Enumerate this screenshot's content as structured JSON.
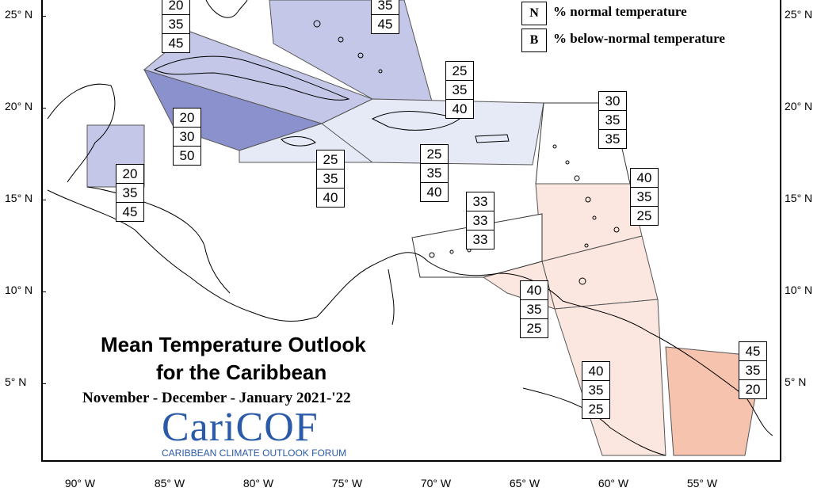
{
  "map": {
    "title_line1": "Mean Temperature Outlook",
    "title_line2": "for the Caribbean",
    "period": "November - December - January  2021-'22",
    "logo_text": "CariCOF",
    "logo_subtitle": "CARIBBEAN CLIMATE OUTLOOK FORUM"
  },
  "legend": [
    {
      "key": "N",
      "label": "% normal temperature"
    },
    {
      "key": "B",
      "label": "% below-normal temperature"
    }
  ],
  "latitude_labels": [
    "25° N",
    "20° N",
    "15° N",
    "10° N",
    "5° N"
  ],
  "longitude_labels": [
    "90° W",
    "85° W",
    "80° W",
    "75° W",
    "70° W",
    "65° W",
    "60° W",
    "55° W"
  ],
  "colors": {
    "below_strong": "#8a91cc",
    "below_medium": "#c4c7e8",
    "below_light": "#e6e9f6",
    "above_light": "#fbe7df",
    "above_strong": "#f6c3ae",
    "neutral": "#ffffff"
  },
  "forecast_boxes": [
    {
      "region": "cuba-west",
      "values": [
        "20",
        "35",
        "45"
      ]
    },
    {
      "region": "bahamas",
      "values": [
        "35",
        "45"
      ]
    },
    {
      "region": "cayman",
      "values": [
        "20",
        "30",
        "50"
      ]
    },
    {
      "region": "belize",
      "values": [
        "20",
        "35",
        "45"
      ]
    },
    {
      "region": "jamaica",
      "values": [
        "25",
        "35",
        "40"
      ]
    },
    {
      "region": "hispaniola",
      "values": [
        "25",
        "35",
        "40"
      ]
    },
    {
      "region": "puerto-rico",
      "values": [
        "25",
        "35",
        "40"
      ]
    },
    {
      "region": "northern-leewards",
      "values": [
        "30",
        "35",
        "35"
      ]
    },
    {
      "region": "windwards",
      "values": [
        "40",
        "35",
        "25"
      ]
    },
    {
      "region": "abc-islands",
      "values": [
        "33",
        "33",
        "33"
      ]
    },
    {
      "region": "trinidad",
      "values": [
        "40",
        "35",
        "25"
      ]
    },
    {
      "region": "guyana",
      "values": [
        "40",
        "35",
        "25"
      ]
    },
    {
      "region": "suriname",
      "values": [
        "45",
        "35",
        "20"
      ]
    }
  ]
}
